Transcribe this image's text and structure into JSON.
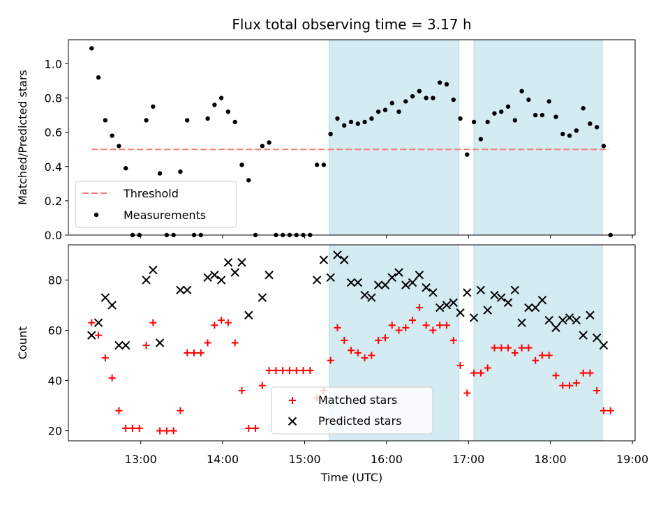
{
  "figure": {
    "title": "Flux total observing time = 3.17 h",
    "xlabel": "Time (UTC)",
    "x_ticks": [
      "13:00",
      "14:00",
      "15:00",
      "16:00",
      "17:00",
      "18:00",
      "19:00"
    ]
  },
  "colors": {
    "threshold": "#f08080",
    "measurements": "#000000",
    "matched": "#ff0000",
    "predicted": "#000000",
    "shade": "#add8e6"
  },
  "chart_data": [
    {
      "type": "scatter",
      "title": "Flux total observing time = 3.17 h",
      "xlabel": "",
      "ylabel": "Matched/Predicted stars",
      "xlim": [
        "12:07",
        "19:02"
      ],
      "ylim": [
        0.0,
        1.14
      ],
      "yticks": [
        "0.0",
        "0.2",
        "0.4",
        "0.6",
        "0.8",
        "1.0"
      ],
      "shaded_intervals": [
        [
          "15:18",
          "16:53"
        ],
        [
          "17:04",
          "18:38"
        ]
      ],
      "legend_placement": "lower-left",
      "threshold": {
        "name": "Threshold",
        "value": 0.5,
        "x_range": [
          "12:24",
          "18:43"
        ]
      },
      "series": [
        {
          "name": "Measurements",
          "x": [
            "12:24",
            "12:29",
            "12:34",
            "12:39",
            "12:44",
            "12:49",
            "12:54",
            "12:59",
            "13:04",
            "13:09",
            "13:14",
            "13:19",
            "13:24",
            "13:29",
            "13:34",
            "13:39",
            "13:44",
            "13:49",
            "13:54",
            "13:59",
            "14:04",
            "14:09",
            "14:14",
            "14:19",
            "14:24",
            "14:29",
            "14:34",
            "14:39",
            "14:44",
            "14:49",
            "14:54",
            "14:59",
            "15:04",
            "15:09",
            "15:14",
            "15:19",
            "15:24",
            "15:29",
            "15:34",
            "15:39",
            "15:44",
            "15:49",
            "15:54",
            "15:59",
            "16:04",
            "16:09",
            "16:14",
            "16:19",
            "16:24",
            "16:29",
            "16:34",
            "16:39",
            "16:44",
            "16:49",
            "16:54",
            "16:59",
            "17:04",
            "17:09",
            "17:14",
            "17:19",
            "17:24",
            "17:29",
            "17:34",
            "17:39",
            "17:44",
            "17:49",
            "17:54",
            "17:59",
            "18:04",
            "18:09",
            "18:14",
            "18:19",
            "18:24",
            "18:29",
            "18:34",
            "18:39",
            "18:44"
          ],
          "y": [
            1.09,
            0.92,
            0.67,
            0.58,
            0.52,
            0.39,
            0.0,
            0.0,
            0.67,
            0.75,
            0.36,
            0.0,
            0.0,
            0.37,
            0.67,
            0.0,
            0.0,
            0.68,
            0.76,
            0.8,
            0.72,
            0.66,
            0.41,
            0.32,
            0.0,
            0.52,
            0.54,
            0.0,
            0.0,
            0.0,
            0.0,
            0.0,
            0.0,
            0.41,
            0.41,
            0.59,
            0.68,
            0.64,
            0.66,
            0.65,
            0.66,
            0.68,
            0.72,
            0.73,
            0.77,
            0.72,
            0.78,
            0.81,
            0.84,
            0.8,
            0.8,
            0.89,
            0.88,
            0.79,
            0.68,
            0.47,
            0.66,
            0.56,
            0.66,
            0.71,
            0.72,
            0.75,
            0.67,
            0.84,
            0.79,
            0.7,
            0.7,
            0.78,
            0.69,
            0.59,
            0.58,
            0.61,
            0.74,
            0.65,
            0.63,
            0.52,
            0.0
          ]
        }
      ]
    },
    {
      "type": "scatter",
      "xlabel": "Time (UTC)",
      "ylabel": "Count",
      "xlim": [
        "12:07",
        "19:02"
      ],
      "ylim": [
        16,
        94
      ],
      "yticks": [
        "20",
        "40",
        "60",
        "80"
      ],
      "shaded_intervals": [
        [
          "15:18",
          "16:53"
        ],
        [
          "17:04",
          "18:38"
        ]
      ],
      "legend_placement": "lower-center",
      "series": [
        {
          "name": "Matched stars",
          "marker": "+",
          "x": [
            "12:24",
            "12:29",
            "12:34",
            "12:39",
            "12:44",
            "12:49",
            "12:54",
            "12:59",
            "13:04",
            "13:09",
            "13:14",
            "13:19",
            "13:24",
            "13:29",
            "13:34",
            "13:39",
            "13:44",
            "13:49",
            "13:54",
            "13:59",
            "14:04",
            "14:09",
            "14:14",
            "14:19",
            "14:24",
            "14:29",
            "14:34",
            "14:39",
            "14:44",
            "14:49",
            "14:54",
            "14:59",
            "15:04",
            "15:09",
            "15:14",
            "15:19",
            "15:24",
            "15:29",
            "15:34",
            "15:39",
            "15:44",
            "15:49",
            "15:54",
            "15:59",
            "16:04",
            "16:09",
            "16:14",
            "16:19",
            "16:24",
            "16:29",
            "16:34",
            "16:39",
            "16:44",
            "16:49",
            "16:54",
            "16:59",
            "17:04",
            "17:09",
            "17:14",
            "17:19",
            "17:24",
            "17:29",
            "17:34",
            "17:39",
            "17:44",
            "17:49",
            "17:54",
            "17:59",
            "18:04",
            "18:09",
            "18:14",
            "18:19",
            "18:24",
            "18:29",
            "18:34",
            "18:39",
            "18:44"
          ],
          "y": [
            63,
            58,
            49,
            41,
            28,
            21,
            21,
            21,
            54,
            63,
            20,
            20,
            20,
            28,
            51,
            51,
            51,
            55,
            62,
            64,
            63,
            55,
            36,
            21,
            21,
            38,
            44,
            44,
            44,
            44,
            44,
            44,
            44,
            33,
            36,
            48,
            61,
            56,
            52,
            51,
            49,
            50,
            56,
            57,
            62,
            60,
            61,
            64,
            69,
            62,
            60,
            62,
            62,
            56,
            46,
            35,
            43,
            43,
            45,
            53,
            53,
            53,
            51,
            53,
            53,
            48,
            50,
            50,
            42,
            38,
            38,
            39,
            43,
            43,
            36,
            28,
            28
          ]
        },
        {
          "name": "Predicted stars",
          "marker": "x",
          "x": [
            "12:24",
            "12:29",
            "12:34",
            "12:39",
            "12:44",
            "12:49",
            "12:54",
            "12:59",
            "13:04",
            "13:09",
            "13:14",
            "13:19",
            "13:24",
            "13:29",
            "13:34",
            "13:39",
            "13:44",
            "13:49",
            "13:54",
            "13:59",
            "14:04",
            "14:09",
            "14:14",
            "14:19",
            "14:24",
            "14:29",
            "14:34",
            "14:39",
            "14:44",
            "14:49",
            "14:54",
            "14:59",
            "15:04",
            "15:09",
            "15:14",
            "15:19",
            "15:24",
            "15:29",
            "15:34",
            "15:39",
            "15:44",
            "15:49",
            "15:54",
            "15:59",
            "16:04",
            "16:09",
            "16:14",
            "16:19",
            "16:24",
            "16:29",
            "16:34",
            "16:39",
            "16:44",
            "16:49",
            "16:54",
            "16:59",
            "17:04",
            "17:09",
            "17:14",
            "17:19",
            "17:24",
            "17:29",
            "17:34",
            "17:39",
            "17:44",
            "17:49",
            "17:54",
            "17:59",
            "18:04",
            "18:09",
            "18:14",
            "18:19",
            "18:24",
            "18:29",
            "18:34",
            "18:39"
          ],
          "y": [
            58,
            63,
            73,
            70,
            54,
            54,
            null,
            null,
            80,
            84,
            55,
            null,
            null,
            76,
            76,
            null,
            null,
            81,
            82,
            80,
            87,
            83,
            87,
            66,
            null,
            73,
            82,
            null,
            null,
            null,
            null,
            null,
            null,
            80,
            88,
            81,
            90,
            88,
            79,
            79,
            74,
            73,
            78,
            78,
            81,
            83,
            78,
            79,
            82,
            77,
            75,
            69,
            70,
            71,
            67,
            75,
            65,
            76,
            68,
            74,
            73,
            71,
            76,
            63,
            69,
            69,
            72,
            64,
            61,
            64,
            65,
            64,
            58,
            66,
            57,
            54
          ]
        }
      ]
    }
  ]
}
